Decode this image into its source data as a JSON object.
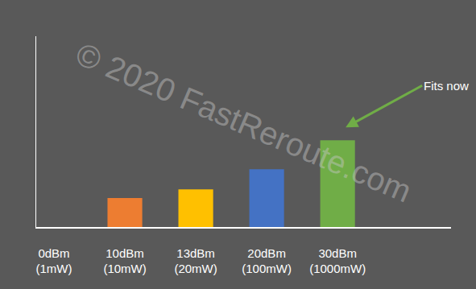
{
  "chart_data": {
    "type": "bar",
    "categories": [
      "0dBm\n(1mW)",
      "10dBm\n(10mW)",
      "13dBm\n(20mW)",
      "20dBm\n(100mW)",
      "30dBm\n(1000mW)"
    ],
    "values": [
      0,
      10,
      13,
      20,
      30
    ],
    "colors": [
      null,
      "#ED7D31",
      "#FFC000",
      "#4472C4",
      "#70AD47"
    ],
    "ylim": [
      0,
      66
    ],
    "tick_labels": "x",
    "grid": false,
    "annotations": [
      {
        "text": "Fits now",
        "category": "30dBm\n(1000mW)",
        "color": "#70AD47"
      }
    ],
    "watermark": "© 2020 FastReroute.com"
  }
}
